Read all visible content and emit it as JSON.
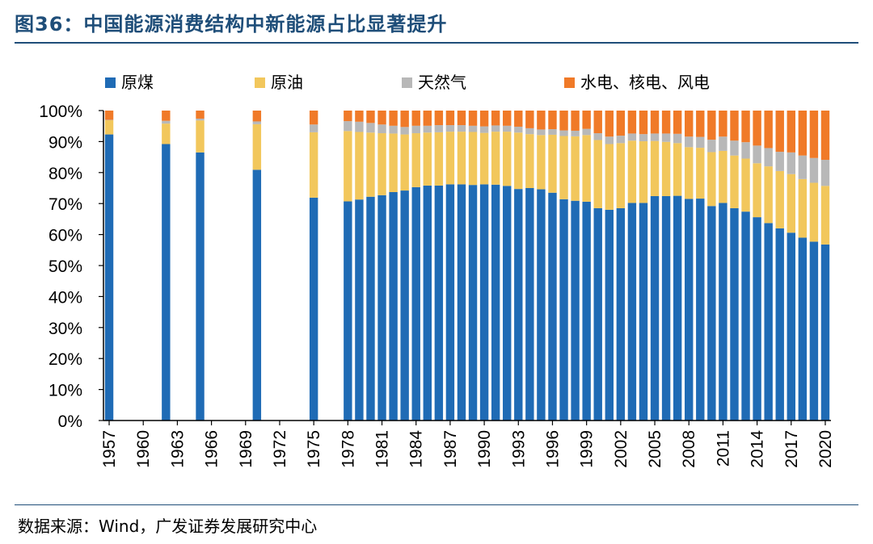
{
  "figure": {
    "title": "图36：中国能源消费结构中新能源占比显著提升",
    "source": "数据来源：Wind，广发证券发展研究中心"
  },
  "colors": {
    "coal": "#1f6bb5",
    "oil": "#f2c75c",
    "gas": "#b8b8b8",
    "clean": "#f07a28",
    "title": "#1f4e79"
  },
  "chart_data": {
    "type": "bar",
    "stacked": true,
    "title": "中国能源消费结构中新能源占比显著提升",
    "xlabel": "",
    "ylabel": "",
    "ylim": [
      0,
      100
    ],
    "y_ticks": [
      "0%",
      "10%",
      "20%",
      "30%",
      "40%",
      "50%",
      "60%",
      "70%",
      "80%",
      "90%",
      "100%"
    ],
    "x_ticks": [
      "1957",
      "1960",
      "1963",
      "1966",
      "1969",
      "1972",
      "1975",
      "1978",
      "1981",
      "1984",
      "1987",
      "1990",
      "1993",
      "1996",
      "1999",
      "2002",
      "2005",
      "2008",
      "2011",
      "2014",
      "2017",
      "2020"
    ],
    "legend_position": "top",
    "categories": [
      "1957",
      "1962",
      "1965",
      "1970",
      "1975",
      "1978",
      "1979",
      "1980",
      "1981",
      "1982",
      "1983",
      "1984",
      "1985",
      "1986",
      "1987",
      "1988",
      "1989",
      "1990",
      "1991",
      "1992",
      "1993",
      "1994",
      "1995",
      "1996",
      "1997",
      "1998",
      "1999",
      "2000",
      "2001",
      "2002",
      "2003",
      "2004",
      "2005",
      "2006",
      "2007",
      "2008",
      "2009",
      "2010",
      "2011",
      "2012",
      "2013",
      "2014",
      "2015",
      "2016",
      "2017",
      "2018",
      "2019",
      "2020"
    ],
    "series": [
      {
        "name": "原煤",
        "key": "coal",
        "values": [
          92.3,
          89.2,
          86.5,
          80.9,
          71.9,
          70.7,
          71.3,
          72.2,
          72.7,
          73.7,
          74.2,
          75.3,
          75.8,
          75.8,
          76.2,
          76.2,
          76.0,
          76.2,
          76.1,
          75.7,
          74.7,
          75.0,
          74.6,
          73.5,
          71.4,
          70.9,
          70.6,
          68.5,
          68.0,
          68.5,
          70.2,
          70.2,
          72.4,
          72.4,
          72.5,
          71.5,
          71.6,
          69.2,
          70.2,
          68.5,
          67.4,
          65.6,
          63.7,
          62.0,
          60.6,
          59.0,
          57.7,
          56.8
        ]
      },
      {
        "name": "原油",
        "key": "oil",
        "values": [
          4.6,
          6.6,
          10.3,
          14.7,
          21.1,
          22.7,
          21.8,
          20.7,
          20.0,
          18.9,
          18.1,
          17.4,
          17.1,
          17.2,
          17.0,
          17.0,
          17.1,
          16.6,
          17.1,
          17.5,
          18.2,
          17.4,
          17.5,
          18.7,
          20.4,
          20.8,
          21.5,
          22.0,
          21.2,
          21.0,
          20.1,
          19.9,
          17.8,
          17.5,
          17.0,
          16.7,
          16.4,
          17.4,
          16.8,
          17.0,
          17.1,
          17.4,
          18.3,
          18.5,
          18.9,
          18.9,
          19.0,
          18.9
        ]
      },
      {
        "name": "天然气",
        "key": "gas",
        "values": [
          0.1,
          0.9,
          0.6,
          0.9,
          2.5,
          3.2,
          3.3,
          3.1,
          2.8,
          2.5,
          2.4,
          2.4,
          2.2,
          2.3,
          2.1,
          2.1,
          2.0,
          2.1,
          2.0,
          1.9,
          1.9,
          1.9,
          1.8,
          1.8,
          1.8,
          1.8,
          2.0,
          2.2,
          2.4,
          2.4,
          2.3,
          2.3,
          2.4,
          2.7,
          3.0,
          3.4,
          3.5,
          4.0,
          4.6,
          4.8,
          5.3,
          5.7,
          5.9,
          6.2,
          7.0,
          7.6,
          8.0,
          8.4
        ]
      },
      {
        "name": "水电、核电、风电",
        "key": "clean",
        "values": [
          3.0,
          3.3,
          2.6,
          3.5,
          4.5,
          3.4,
          3.6,
          4.0,
          4.5,
          4.9,
          5.3,
          4.9,
          4.9,
          4.7,
          4.7,
          4.7,
          4.9,
          5.1,
          4.8,
          4.9,
          5.2,
          5.7,
          6.1,
          6.0,
          6.4,
          6.5,
          5.9,
          7.3,
          8.4,
          8.1,
          7.4,
          7.6,
          7.4,
          7.4,
          7.5,
          8.4,
          8.5,
          9.4,
          8.4,
          9.7,
          10.2,
          11.3,
          12.1,
          13.3,
          13.5,
          14.5,
          15.3,
          15.9
        ]
      }
    ]
  }
}
